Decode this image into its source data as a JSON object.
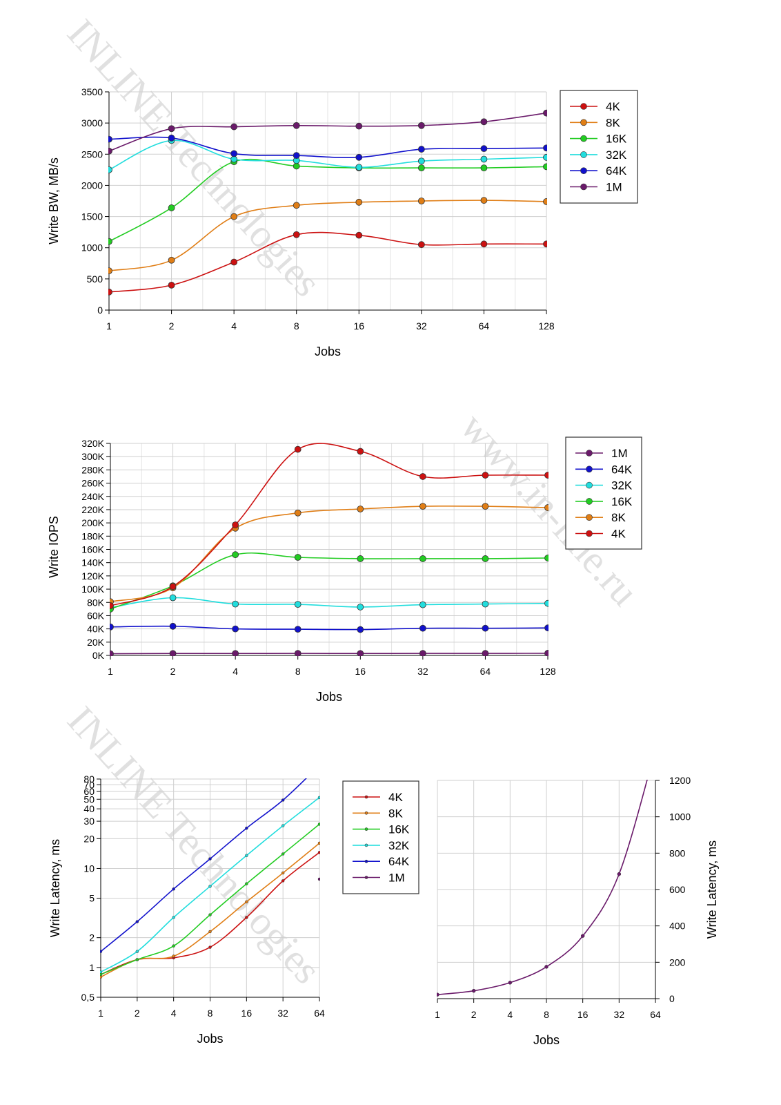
{
  "watermarks": [
    "INLINE Technologies",
    "www.in-line.ru",
    "INLINE Technologies"
  ],
  "colors": {
    "4K": "#cc1111",
    "8K": "#e07e16",
    "16K": "#22cc22",
    "32K": "#22dddd",
    "64K": "#1111cc",
    "1M": "#6a1a6a"
  },
  "chart_data": [
    {
      "type": "line",
      "title": "",
      "xlabel": "Jobs",
      "ylabel": "Write BW, MB/s",
      "x": [
        "1",
        "2",
        "4",
        "8",
        "16",
        "32",
        "64",
        "128"
      ],
      "ylim": [
        0,
        3500
      ],
      "yticks": [
        "0",
        "500",
        "1000",
        "1500",
        "2000",
        "2500",
        "3000",
        "3500"
      ],
      "grid": true,
      "legend": "right",
      "series": [
        {
          "name": "4K",
          "values": [
            290,
            400,
            770,
            1210,
            1200,
            1050,
            1060,
            1060
          ]
        },
        {
          "name": "8K",
          "values": [
            630,
            800,
            1500,
            1680,
            1730,
            1750,
            1760,
            1740
          ]
        },
        {
          "name": "16K",
          "values": [
            1100,
            1640,
            2380,
            2310,
            2280,
            2280,
            2280,
            2300
          ]
        },
        {
          "name": "32K",
          "values": [
            2250,
            2720,
            2420,
            2400,
            2290,
            2390,
            2420,
            2450
          ]
        },
        {
          "name": "64K",
          "values": [
            2740,
            2760,
            2510,
            2480,
            2450,
            2580,
            2590,
            2600
          ]
        },
        {
          "name": "1M",
          "values": [
            2550,
            2910,
            2940,
            2960,
            2950,
            2960,
            3020,
            3160
          ]
        }
      ]
    },
    {
      "type": "line",
      "title": "",
      "xlabel": "Jobs",
      "ylabel": "Write IOPS",
      "x": [
        "1",
        "2",
        "4",
        "8",
        "16",
        "32",
        "64",
        "128"
      ],
      "ylim": [
        0,
        320000
      ],
      "yticks": [
        "0K",
        "20K",
        "40K",
        "60K",
        "80K",
        "100K",
        "120K",
        "140K",
        "160K",
        "180K",
        "200K",
        "220K",
        "240K",
        "260K",
        "280K",
        "300K",
        "320K"
      ],
      "grid": true,
      "legend": "right",
      "series": [
        {
          "name": "1M",
          "values": [
            2500,
            2900,
            2900,
            3000,
            2900,
            3000,
            3000,
            3200
          ]
        },
        {
          "name": "64K",
          "values": [
            43000,
            44000,
            40000,
            39500,
            39000,
            41000,
            41000,
            41500
          ]
        },
        {
          "name": "32K",
          "values": [
            72000,
            87000,
            77500,
            77000,
            73000,
            76500,
            77500,
            78500
          ]
        },
        {
          "name": "16K",
          "values": [
            70000,
            105000,
            152000,
            148000,
            146000,
            146000,
            146000,
            147000
          ]
        },
        {
          "name": "8K",
          "values": [
            81000,
            102000,
            192000,
            215000,
            221000,
            225000,
            225000,
            223000
          ]
        },
        {
          "name": "4K",
          "values": [
            75000,
            104000,
            197000,
            311000,
            308000,
            270000,
            272000,
            272000
          ]
        }
      ]
    },
    {
      "type": "line",
      "title": "",
      "xlabel": "Jobs",
      "ylabel": "Write Latency, ms",
      "yscale": "log",
      "x": [
        "1",
        "2",
        "4",
        "8",
        "16",
        "32",
        "64"
      ],
      "ylim": [
        0.5,
        80
      ],
      "yticks": [
        "0,5",
        "1",
        "2",
        "5",
        "10",
        "20",
        "30",
        "40",
        "50",
        "60",
        "70",
        "80"
      ],
      "grid": true,
      "legend": "right",
      "series": [
        {
          "name": "4K",
          "values": [
            0.85,
            1.2,
            1.25,
            1.6,
            3.2,
            7.5,
            14.5
          ]
        },
        {
          "name": "8K",
          "values": [
            0.8,
            1.2,
            1.3,
            2.3,
            4.6,
            9.0,
            18.0
          ]
        },
        {
          "name": "16K",
          "values": [
            0.85,
            1.2,
            1.65,
            3.4,
            7.0,
            14.0,
            28.0
          ]
        },
        {
          "name": "32K",
          "values": [
            0.9,
            1.45,
            3.2,
            6.6,
            13.5,
            27.0,
            52.0
          ]
        },
        {
          "name": "64K",
          "values": [
            1.45,
            2.9,
            6.2,
            12.5,
            25.5,
            49.0,
            110.0
          ]
        },
        {
          "name": "1M",
          "values": [
            null,
            null,
            null,
            null,
            null,
            null,
            7.8
          ]
        }
      ]
    },
    {
      "type": "line",
      "title": "",
      "xlabel": "Jobs",
      "ylabel": "Write Latency, ms",
      "x": [
        "1",
        "2",
        "4",
        "8",
        "16",
        "32",
        "64"
      ],
      "ylim": [
        0,
        1200
      ],
      "yticks": [
        "0",
        "200",
        "400",
        "600",
        "800",
        "1000",
        "1200"
      ],
      "grid": true,
      "yaxis": "right",
      "series": [
        {
          "name": "1M",
          "values": [
            22,
            43,
            88,
            175,
            345,
            685,
            1370
          ]
        }
      ]
    }
  ]
}
